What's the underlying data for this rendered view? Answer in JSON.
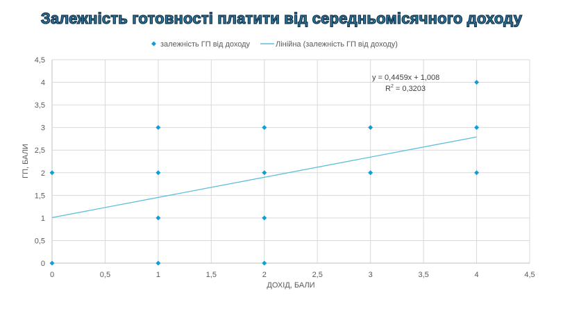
{
  "chart_data": {
    "type": "scatter",
    "title": "Залежність готовності платити від середньомісячного доходу",
    "xlabel": "ДОХІД, БАЛИ",
    "ylabel": "ГП, БАЛИ",
    "xlim": [
      0,
      4.5
    ],
    "ylim": [
      0,
      4.5
    ],
    "x_ticks": [
      "0",
      "0,5",
      "1",
      "1,5",
      "2",
      "2,5",
      "3",
      "3,5",
      "4",
      "4,5"
    ],
    "y_ticks": [
      "0",
      "0,5",
      "1",
      "1,5",
      "2",
      "2,5",
      "3",
      "3,5",
      "4",
      "4,5"
    ],
    "grid": true,
    "legend_position": "top",
    "series": [
      {
        "name": "залежність ГП від доходу",
        "color": "#0f9ed5",
        "marker": "diamond",
        "points": [
          [
            0,
            2
          ],
          [
            0,
            0
          ],
          [
            1,
            3
          ],
          [
            1,
            2
          ],
          [
            1,
            1
          ],
          [
            1,
            0
          ],
          [
            2,
            3
          ],
          [
            2,
            2
          ],
          [
            2,
            1
          ],
          [
            2,
            0
          ],
          [
            3,
            3
          ],
          [
            3,
            2
          ],
          [
            4,
            4
          ],
          [
            4,
            3
          ],
          [
            4,
            2
          ]
        ]
      }
    ],
    "trendline": {
      "name": "Лінійна (залежність ГП від доходу)",
      "color": "#5bbfdc",
      "slope": 0.4459,
      "intercept": 1.008,
      "x_range": [
        0,
        4
      ],
      "equation": "y = 0,4459x + 1,008",
      "r2_label": "R",
      "r2_value": " = 0,3203"
    }
  }
}
